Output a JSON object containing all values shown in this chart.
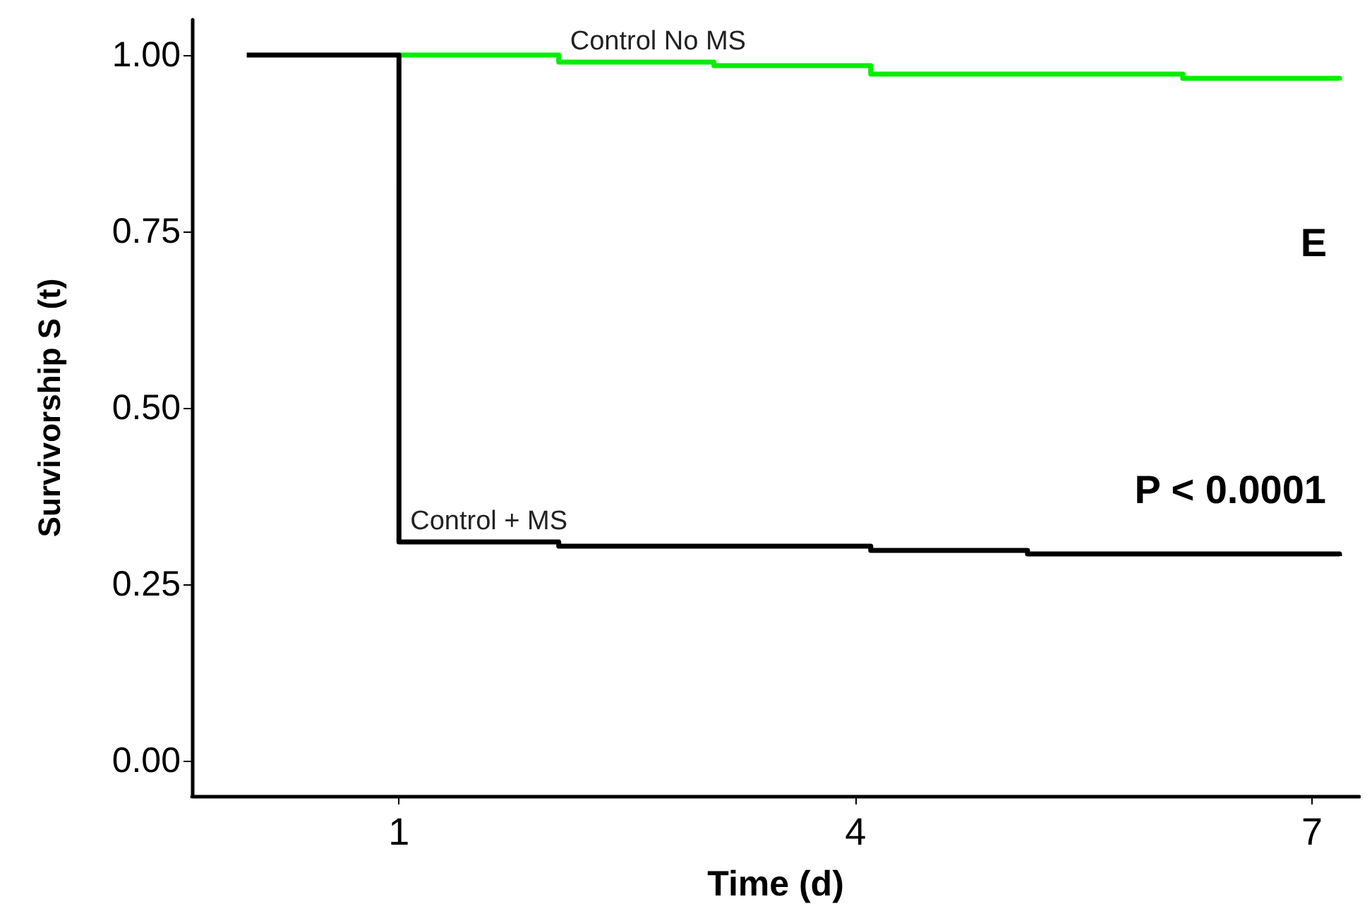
{
  "chart_data": {
    "type": "step",
    "xlabel": "Time (d)",
    "ylabel": "Survivorship S (t)",
    "xlim": [
      -0.36,
      7.31
    ],
    "xticks": [
      1,
      4,
      7
    ],
    "ylim": [
      -0.05,
      1.05
    ],
    "yticks": [
      {
        "value": 0,
        "label": "0.00"
      },
      {
        "value": 0.25,
        "label": "0.25"
      },
      {
        "value": 0.5,
        "label": "0.50"
      },
      {
        "value": 0.75,
        "label": "0.75"
      },
      {
        "value": 1,
        "label": "1.00"
      }
    ],
    "series": [
      {
        "name": "Control No MS",
        "color": "#00ee00",
        "x": [
          1,
          2.05,
          3.07,
          4.1,
          6.15,
          7.18
        ],
        "values": [
          1.0,
          0.99,
          0.985,
          0.973,
          0.967,
          0.964
        ]
      },
      {
        "name": "Control + MS",
        "color": "#000000",
        "x": [
          0,
          1,
          2.05,
          4.1,
          5.13,
          7.18
        ],
        "values": [
          1.0,
          0.31,
          0.304,
          0.298,
          0.293,
          0.29
        ]
      }
    ],
    "annotations": [
      "E",
      "P < 0.0001"
    ],
    "grid": false,
    "legend": false,
    "marker": "none",
    "line_style": "solid"
  }
}
